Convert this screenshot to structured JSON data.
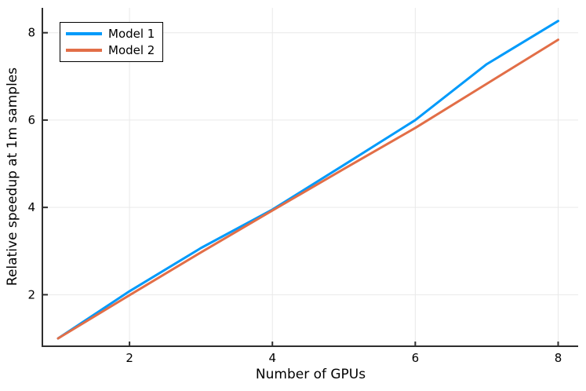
{
  "figure": {
    "background": "#FFFFFF"
  },
  "chart_data": {
    "type": "line",
    "xlabel": "Number of GPUs",
    "ylabel": "Relative speedup at 1m samples",
    "x": [
      1,
      2,
      3,
      4,
      5,
      6,
      7,
      8
    ],
    "series": [
      {
        "name": "Model 1",
        "color": "#009AFA",
        "values": [
          1.0,
          2.08,
          3.07,
          3.95,
          4.97,
          6.0,
          7.28,
          8.27
        ]
      },
      {
        "name": "Model 2",
        "color": "#E26E47",
        "values": [
          1.0,
          1.99,
          2.97,
          3.93,
          4.88,
          5.82,
          6.83,
          7.84
        ]
      }
    ],
    "xlim": [
      0.78,
      8.28
    ],
    "ylim": [
      0.82,
      8.57
    ],
    "xticks": [
      2,
      4,
      6,
      8
    ],
    "yticks": [
      2,
      4,
      6,
      8
    ],
    "grid": true,
    "legend": {
      "position": "top-left",
      "entries": [
        "Model 1",
        "Model 2"
      ]
    },
    "colors": {
      "axis": "#2E2E2E",
      "grid": "#E9E9E9",
      "text": "#000000"
    }
  }
}
